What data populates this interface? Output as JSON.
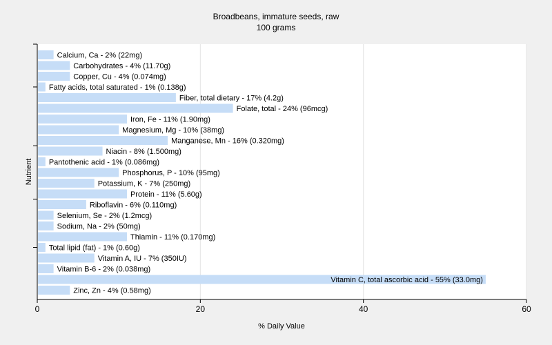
{
  "chart_data": {
    "type": "bar",
    "orientation": "horizontal",
    "title": "Broadbeans, immature seeds, raw",
    "subtitle": "100 grams",
    "xlabel": "% Daily Value",
    "ylabel": "Nutrient",
    "xlim": [
      0,
      60
    ],
    "xticks": [
      0,
      20,
      40,
      60
    ],
    "grid": true,
    "bar_color": "#c6ddf7",
    "categories": [
      "Calcium, Ca - 2% (22mg)",
      "Carbohydrates - 4% (11.70g)",
      "Copper, Cu - 4% (0.074mg)",
      "Fatty acids, total saturated - 1% (0.138g)",
      "Fiber, total dietary - 17% (4.2g)",
      "Folate, total - 24% (96mcg)",
      "Iron, Fe - 11% (1.90mg)",
      "Magnesium, Mg - 10% (38mg)",
      "Manganese, Mn - 16% (0.320mg)",
      "Niacin - 8% (1.500mg)",
      "Pantothenic acid - 1% (0.086mg)",
      "Phosphorus, P - 10% (95mg)",
      "Potassium, K - 7% (250mg)",
      "Protein - 11% (5.60g)",
      "Riboflavin - 6% (0.110mg)",
      "Selenium, Se - 2% (1.2mcg)",
      "Sodium, Na - 2% (50mg)",
      "Thiamin - 11% (0.170mg)",
      "Total lipid (fat) - 1% (0.60g)",
      "Vitamin A, IU - 7% (350IU)",
      "Vitamin B-6 - 2% (0.038mg)",
      "Vitamin C, total ascorbic acid - 55% (33.0mg)",
      "Zinc, Zn - 4% (0.58mg)"
    ],
    "values": [
      2,
      4,
      4,
      1,
      17,
      24,
      11,
      10,
      16,
      8,
      1,
      10,
      7,
      11,
      6,
      2,
      2,
      11,
      1,
      7,
      2,
      55,
      4
    ]
  }
}
